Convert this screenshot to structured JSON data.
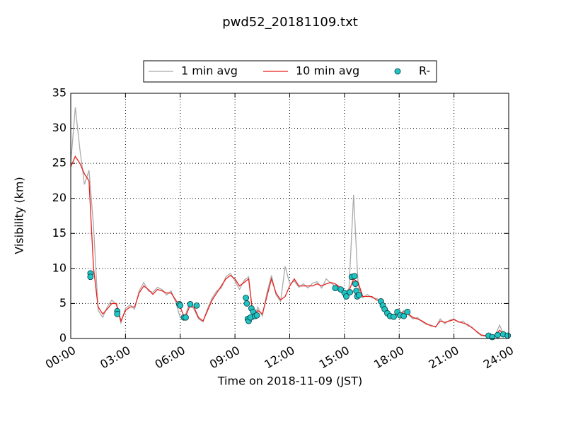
{
  "chart_data": {
    "type": "line",
    "title": "pwd52_20181109.txt",
    "x_label": "Time on 2018-11-09 (JST)",
    "y_label": "Visibility (km)",
    "xlim": [
      0,
      24
    ],
    "ylim": [
      0,
      35
    ],
    "xticks": [
      {
        "value": 0,
        "label": "00:00"
      },
      {
        "value": 3,
        "label": "03:00"
      },
      {
        "value": 6,
        "label": "06:00"
      },
      {
        "value": 9,
        "label": "09:00"
      },
      {
        "value": 12,
        "label": "12:00"
      },
      {
        "value": 15,
        "label": "15:00"
      },
      {
        "value": 18,
        "label": "18:00"
      },
      {
        "value": 21,
        "label": "21:00"
      },
      {
        "value": 24,
        "label": "24:00"
      }
    ],
    "yticks": [
      0,
      5,
      10,
      15,
      20,
      25,
      30,
      35
    ],
    "grid": true,
    "legend": "top",
    "x": [
      0,
      0.25,
      0.5,
      0.75,
      1,
      1.25,
      1.5,
      1.75,
      2,
      2.25,
      2.5,
      2.75,
      3,
      3.25,
      3.5,
      3.75,
      4,
      4.25,
      4.5,
      4.75,
      5,
      5.25,
      5.5,
      5.75,
      6,
      6.25,
      6.5,
      6.75,
      7,
      7.25,
      7.5,
      7.75,
      8,
      8.25,
      8.5,
      8.75,
      9,
      9.25,
      9.5,
      9.75,
      10,
      10.25,
      10.5,
      10.75,
      11,
      11.25,
      11.5,
      11.75,
      12,
      12.25,
      12.5,
      12.75,
      13,
      13.25,
      13.5,
      13.75,
      14,
      14.25,
      14.5,
      14.75,
      15,
      15.25,
      15.5,
      15.75,
      16,
      16.25,
      16.5,
      16.75,
      17,
      17.25,
      17.5,
      17.75,
      18,
      18.25,
      18.5,
      18.75,
      19,
      19.25,
      19.5,
      19.75,
      20,
      20.25,
      20.5,
      20.75,
      21,
      21.25,
      21.5,
      21.75,
      22,
      22.25,
      22.5,
      22.75,
      23,
      23.25,
      23.5,
      23.75,
      24
    ],
    "series": [
      {
        "name": "1 min avg",
        "color": "#aaaaaa",
        "values": [
          25,
          33,
          27,
          22,
          24,
          16,
          4,
          3,
          4.5,
          5.5,
          4.8,
          2.2,
          4.3,
          4.8,
          4.2,
          6.8,
          8,
          6.8,
          6.6,
          7.3,
          7,
          6.2,
          6.8,
          5.2,
          3,
          3.1,
          5,
          4.2,
          2.8,
          2.4,
          4.3,
          5.8,
          6.8,
          7.2,
          8.8,
          9.3,
          8.2,
          7,
          8.3,
          8.8,
          2.6,
          4.5,
          3.2,
          6.5,
          9,
          6.2,
          5.3,
          10.3,
          7.8,
          8.2,
          7.3,
          7.8,
          7.2,
          7.9,
          8.1,
          7.2,
          8.5,
          7.9,
          7.5,
          7,
          6.2,
          7.2,
          20.5,
          7.6,
          5.8,
          6.3,
          5.8,
          5.7,
          5.5,
          4.2,
          3.3,
          3.5,
          3.3,
          4,
          3.4,
          2.8,
          3,
          2.4,
          2,
          1.9,
          1.6,
          2.8,
          2.1,
          2.6,
          2.8,
          2.3,
          2.5,
          1.8,
          1.6,
          0.9,
          0.4,
          0.3,
          0.2,
          0.4,
          1.9,
          0.4,
          0.3
        ]
      },
      {
        "name": "10 min avg",
        "color": "#e8201c",
        "values": [
          24.5,
          26,
          25,
          23.5,
          22.5,
          10,
          4.5,
          3.5,
          4.2,
          5,
          5,
          2.5,
          4,
          4.5,
          4.5,
          6.5,
          7.5,
          7,
          6.3,
          7,
          6.8,
          6.5,
          6.5,
          5.5,
          4.5,
          2.8,
          4.5,
          4.5,
          3,
          2.5,
          4,
          5.5,
          6.5,
          7.5,
          8.5,
          9,
          8.5,
          7.5,
          8,
          8.5,
          3,
          4,
          3.5,
          6,
          8.5,
          6.5,
          5.5,
          6,
          7.5,
          8.5,
          7.5,
          7.5,
          7.5,
          7.5,
          7.8,
          7.5,
          7.8,
          8,
          7.8,
          7.3,
          6.5,
          6.8,
          8.5,
          8,
          6,
          6,
          6,
          5.5,
          5.3,
          4.5,
          3.5,
          3.3,
          3.5,
          3.8,
          3.5,
          3,
          2.8,
          2.5,
          2.1,
          1.8,
          1.7,
          2.5,
          2.3,
          2.5,
          2.7,
          2.4,
          2.2,
          2,
          1.5,
          1,
          0.5,
          0.4,
          0.3,
          0.3,
          1.2,
          0.5,
          0.4
        ]
      },
      {
        "name": "R-",
        "type": "scatter",
        "color": "#1fc4c4",
        "x": [
          1.08,
          1.08,
          2.55,
          2.55,
          5.95,
          6.0,
          6.2,
          6.3,
          6.55,
          6.9,
          9.6,
          9.65,
          9.7,
          9.75,
          9.85,
          9.9,
          10.0,
          10.1,
          10.2,
          14.5,
          14.8,
          15.0,
          15.1,
          15.3,
          15.4,
          15.55,
          15.6,
          15.65,
          15.7,
          15.8,
          17.0,
          17.1,
          17.2,
          17.35,
          17.5,
          17.7,
          17.9,
          18.05,
          18.25,
          18.45,
          22.9,
          23.1,
          23.4,
          23.7,
          23.95
        ],
        "values": [
          9.3,
          8.8,
          3.9,
          3.5,
          4.9,
          4.7,
          3.0,
          3.0,
          4.9,
          4.7,
          5.8,
          5.0,
          2.8,
          2.5,
          3.0,
          4.3,
          3.8,
          3.2,
          3.3,
          7.2,
          7.0,
          6.5,
          6.0,
          6.6,
          8.8,
          8.9,
          7.8,
          6.8,
          6.0,
          6.2,
          5.3,
          4.7,
          4.2,
          3.6,
          3.2,
          3.1,
          3.8,
          3.3,
          3.2,
          3.8,
          0.4,
          0.2,
          0.5,
          0.6,
          0.4
        ]
      }
    ]
  }
}
